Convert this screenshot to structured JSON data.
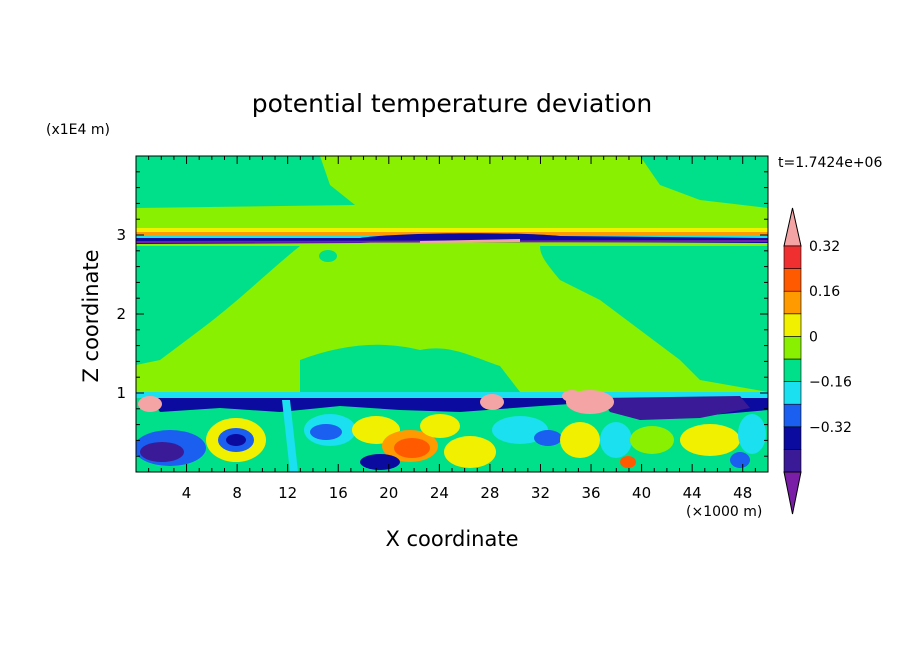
{
  "chart_data": {
    "type": "heatmap",
    "title": "potential temperature deviation",
    "xlabel": "X coordinate",
    "ylabel": "Z coordinate",
    "x_unit": "(×1000 m)",
    "y_unit": "(x1E4 m)",
    "time_label": "t=1.7424e+06",
    "xlim": [
      0,
      50
    ],
    "ylim": [
      0,
      4
    ],
    "x_ticks": [
      4,
      8,
      12,
      16,
      20,
      24,
      28,
      32,
      36,
      40,
      44,
      48
    ],
    "y_ticks": [
      1,
      2,
      3
    ],
    "colorbar": {
      "levels": [
        -0.48,
        -0.4,
        -0.32,
        -0.24,
        -0.16,
        -0.08,
        0,
        0.08,
        0.16,
        0.24,
        0.32,
        0.4
      ],
      "tick_labels": [
        "0.32",
        "0.16",
        "0",
        "−0.16",
        "−0.32"
      ],
      "tick_values": [
        0.32,
        0.16,
        0,
        -0.16,
        -0.32
      ],
      "colors": [
        "#7a1ea8",
        "#3a1a96",
        "#0b0ba0",
        "#1a5ff0",
        "#1ae0f0",
        "#00e08a",
        "#88f000",
        "#f0f000",
        "#ff9a00",
        "#ff5a00",
        "#f03030",
        "#f4a4a4"
      ]
    }
  }
}
